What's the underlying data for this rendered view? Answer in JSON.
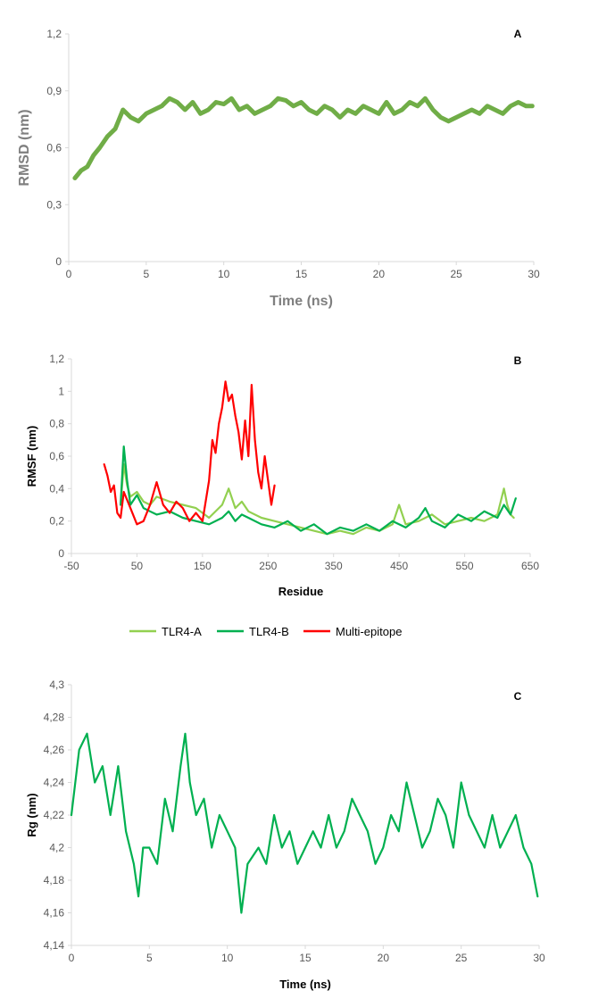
{
  "chart_data": [
    {
      "type": "line",
      "panel_label": "A",
      "xlabel": "Time (ns)",
      "ylabel": "RMSD (nm)",
      "xlim": [
        0,
        30
      ],
      "ylim": [
        0,
        1.2
      ],
      "x_ticks": [
        0,
        5,
        10,
        15,
        20,
        25,
        30
      ],
      "y_ticks": [
        0,
        0.3,
        0.6,
        0.9,
        1.2
      ],
      "x_tick_labels": [
        "0",
        "5",
        "10",
        "15",
        "20",
        "25",
        "30"
      ],
      "y_tick_labels": [
        "0",
        "0,3",
        "0,6",
        "0,9",
        "1,2"
      ],
      "grid": false,
      "series": [
        {
          "color": "#70ad47",
          "x": [
            0.4,
            0.8,
            1.2,
            1.6,
            2.0,
            2.5,
            3.0,
            3.5,
            4.0,
            4.5,
            5.0,
            5.5,
            6.0,
            6.5,
            7.0,
            7.5,
            8.0,
            8.5,
            9.0,
            9.5,
            10.0,
            10.5,
            11.0,
            11.5,
            12.0,
            12.5,
            13.0,
            13.5,
            14.0,
            14.5,
            15.0,
            15.5,
            16.0,
            16.5,
            17.0,
            17.5,
            18.0,
            18.5,
            19.0,
            19.5,
            20.0,
            20.5,
            21.0,
            21.5,
            22.0,
            22.5,
            23.0,
            23.5,
            24.0,
            24.5,
            25.0,
            25.5,
            26.0,
            26.5,
            27.0,
            27.5,
            28.0,
            28.5,
            29.0,
            29.5,
            29.9
          ],
          "y": [
            0.44,
            0.48,
            0.5,
            0.56,
            0.6,
            0.66,
            0.7,
            0.8,
            0.76,
            0.74,
            0.78,
            0.8,
            0.82,
            0.86,
            0.84,
            0.8,
            0.84,
            0.78,
            0.8,
            0.84,
            0.83,
            0.86,
            0.8,
            0.82,
            0.78,
            0.8,
            0.82,
            0.86,
            0.85,
            0.82,
            0.84,
            0.8,
            0.78,
            0.82,
            0.8,
            0.76,
            0.8,
            0.78,
            0.82,
            0.8,
            0.78,
            0.84,
            0.78,
            0.8,
            0.84,
            0.82,
            0.86,
            0.8,
            0.76,
            0.74,
            0.76,
            0.78,
            0.8,
            0.78,
            0.82,
            0.8,
            0.78,
            0.82,
            0.84,
            0.82,
            0.82
          ]
        }
      ]
    },
    {
      "type": "line",
      "panel_label": "B",
      "xlabel": "Residue",
      "ylabel": "RMSF (nm)",
      "xlim": [
        -50,
        650
      ],
      "ylim": [
        0,
        1.2
      ],
      "x_ticks": [
        -50,
        50,
        150,
        250,
        350,
        450,
        550,
        650
      ],
      "y_ticks": [
        0,
        0.2,
        0.4,
        0.6,
        0.8,
        1.0,
        1.2
      ],
      "x_tick_labels": [
        "-50",
        "50",
        "150",
        "250",
        "350",
        "450",
        "550",
        "650"
      ],
      "y_tick_labels": [
        "0",
        "0,2",
        "0,4",
        "0,6",
        "0,8",
        "1",
        "1,2"
      ],
      "grid": false,
      "legend_position": "below",
      "series": [
        {
          "name": "TLR4-A",
          "color": "#92d050",
          "x": [
            25,
            30,
            35,
            40,
            50,
            60,
            70,
            80,
            100,
            120,
            140,
            160,
            180,
            190,
            200,
            210,
            220,
            240,
            260,
            280,
            300,
            320,
            340,
            360,
            380,
            400,
            420,
            440,
            450,
            460,
            480,
            500,
            520,
            540,
            560,
            580,
            600,
            610,
            615,
            620,
            625
          ],
          "y": [
            0.3,
            0.55,
            0.42,
            0.35,
            0.38,
            0.32,
            0.3,
            0.35,
            0.32,
            0.3,
            0.28,
            0.22,
            0.3,
            0.4,
            0.28,
            0.32,
            0.26,
            0.22,
            0.2,
            0.18,
            0.16,
            0.14,
            0.12,
            0.14,
            0.12,
            0.16,
            0.14,
            0.18,
            0.3,
            0.18,
            0.2,
            0.24,
            0.18,
            0.2,
            0.22,
            0.2,
            0.24,
            0.4,
            0.3,
            0.24,
            0.22
          ]
        },
        {
          "name": "TLR4-B",
          "color": "#00b050",
          "x": [
            25,
            30,
            35,
            40,
            50,
            60,
            70,
            80,
            100,
            120,
            140,
            160,
            180,
            190,
            200,
            210,
            220,
            240,
            260,
            280,
            300,
            320,
            340,
            360,
            380,
            400,
            420,
            440,
            460,
            480,
            490,
            500,
            520,
            540,
            560,
            580,
            600,
            610,
            620,
            628
          ],
          "y": [
            0.3,
            0.66,
            0.45,
            0.3,
            0.36,
            0.28,
            0.26,
            0.24,
            0.26,
            0.22,
            0.2,
            0.18,
            0.22,
            0.26,
            0.2,
            0.24,
            0.22,
            0.18,
            0.16,
            0.2,
            0.14,
            0.18,
            0.12,
            0.16,
            0.14,
            0.18,
            0.14,
            0.2,
            0.16,
            0.22,
            0.28,
            0.2,
            0.16,
            0.24,
            0.2,
            0.26,
            0.22,
            0.3,
            0.24,
            0.34
          ]
        },
        {
          "name": "Multi-epitope",
          "color": "#ff0000",
          "x": [
            0,
            5,
            10,
            15,
            20,
            25,
            30,
            40,
            50,
            60,
            70,
            80,
            90,
            100,
            110,
            120,
            130,
            140,
            150,
            160,
            165,
            170,
            175,
            180,
            185,
            190,
            195,
            200,
            205,
            210,
            215,
            220,
            225,
            230,
            235,
            240,
            245,
            250,
            255,
            260
          ],
          "y": [
            0.55,
            0.48,
            0.38,
            0.42,
            0.25,
            0.22,
            0.38,
            0.28,
            0.18,
            0.2,
            0.3,
            0.44,
            0.3,
            0.25,
            0.32,
            0.28,
            0.2,
            0.25,
            0.2,
            0.45,
            0.7,
            0.62,
            0.8,
            0.9,
            1.06,
            0.94,
            0.98,
            0.85,
            0.75,
            0.58,
            0.82,
            0.6,
            1.04,
            0.7,
            0.5,
            0.4,
            0.6,
            0.45,
            0.3,
            0.42
          ]
        }
      ]
    },
    {
      "type": "line",
      "panel_label": "C",
      "xlabel": "Time (ns)",
      "ylabel": "Rg (nm)",
      "xlim": [
        0,
        30
      ],
      "ylim": [
        4.14,
        4.3
      ],
      "x_ticks": [
        0,
        5,
        10,
        15,
        20,
        25,
        30
      ],
      "y_ticks": [
        4.14,
        4.16,
        4.18,
        4.2,
        4.22,
        4.24,
        4.26,
        4.28,
        4.3
      ],
      "x_tick_labels": [
        "0",
        "5",
        "10",
        "15",
        "20",
        "25",
        "30"
      ],
      "y_tick_labels": [
        "4,14",
        "4,16",
        "4,18",
        "4,2",
        "4,22",
        "4,24",
        "4,26",
        "4,28",
        "4,3"
      ],
      "grid": false,
      "series": [
        {
          "color": "#00b050",
          "x": [
            0.0,
            0.5,
            1.0,
            1.5,
            2.0,
            2.5,
            3.0,
            3.5,
            4.0,
            4.3,
            4.6,
            5.0,
            5.5,
            6.0,
            6.5,
            7.0,
            7.3,
            7.6,
            8.0,
            8.5,
            9.0,
            9.5,
            10.0,
            10.5,
            10.9,
            11.3,
            12.0,
            12.5,
            13.0,
            13.5,
            14.0,
            14.5,
            15.0,
            15.5,
            16.0,
            16.5,
            17.0,
            17.5,
            18.0,
            18.5,
            19.0,
            19.5,
            20.0,
            20.5,
            21.0,
            21.5,
            22.0,
            22.5,
            23.0,
            23.5,
            24.0,
            24.5,
            25.0,
            25.5,
            26.0,
            26.5,
            27.0,
            27.5,
            28.0,
            28.5,
            29.0,
            29.5,
            29.9
          ],
          "y": [
            4.22,
            4.26,
            4.27,
            4.24,
            4.25,
            4.22,
            4.25,
            4.21,
            4.19,
            4.17,
            4.2,
            4.2,
            4.19,
            4.23,
            4.21,
            4.25,
            4.27,
            4.24,
            4.22,
            4.23,
            4.2,
            4.22,
            4.21,
            4.2,
            4.16,
            4.19,
            4.2,
            4.19,
            4.22,
            4.2,
            4.21,
            4.19,
            4.2,
            4.21,
            4.2,
            4.22,
            4.2,
            4.21,
            4.23,
            4.22,
            4.21,
            4.19,
            4.2,
            4.22,
            4.21,
            4.24,
            4.22,
            4.2,
            4.21,
            4.23,
            4.22,
            4.2,
            4.24,
            4.22,
            4.21,
            4.2,
            4.22,
            4.2,
            4.21,
            4.22,
            4.2,
            4.19,
            4.17
          ]
        }
      ]
    }
  ]
}
